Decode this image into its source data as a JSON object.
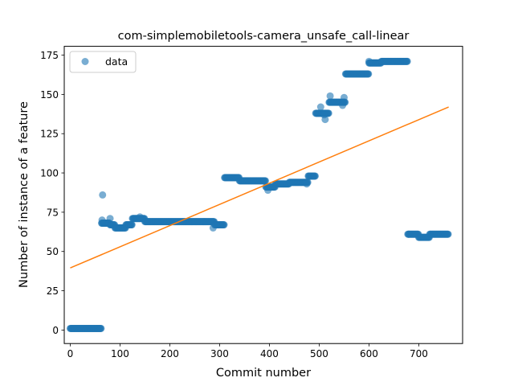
{
  "chart_data": {
    "type": "scatter",
    "title": "com-simplemobiletools-camera_unsafe_call-linear",
    "xlabel": "Commit number",
    "ylabel": "Number of instance of a feature",
    "xlim": [
      -12,
      788
    ],
    "ylim": [
      -8.6,
      180.6
    ],
    "xticks": [
      0,
      100,
      200,
      300,
      400,
      500,
      600,
      700
    ],
    "yticks": [
      0,
      25,
      50,
      75,
      100,
      125,
      150,
      175
    ],
    "grid": false,
    "legend": {
      "placement": "top-left",
      "entries": [
        "data"
      ]
    },
    "colors": {
      "data": "#1f77b4",
      "fit": "#ff7f0e"
    },
    "series": [
      {
        "name": "data",
        "kind": "scatter",
        "segments": [
          {
            "x_start": 0,
            "x_end": 63,
            "y": 1
          },
          {
            "x_start": 63,
            "x_end": 80,
            "y": 68
          },
          {
            "x_start": 80,
            "x_end": 90,
            "y": 67
          },
          {
            "x_start": 90,
            "x_end": 112,
            "y": 65
          },
          {
            "x_start": 112,
            "x_end": 125,
            "y": 67
          },
          {
            "x_start": 125,
            "x_end": 150,
            "y": 71
          },
          {
            "x_start": 150,
            "x_end": 290,
            "y": 69
          },
          {
            "x_start": 290,
            "x_end": 310,
            "y": 67
          },
          {
            "x_start": 310,
            "x_end": 340,
            "y": 97
          },
          {
            "x_start": 340,
            "x_end": 393,
            "y": 95
          },
          {
            "x_start": 393,
            "x_end": 412,
            "y": 91
          },
          {
            "x_start": 412,
            "x_end": 440,
            "y": 93
          },
          {
            "x_start": 440,
            "x_end": 478,
            "y": 94
          },
          {
            "x_start": 478,
            "x_end": 493,
            "y": 98
          },
          {
            "x_start": 493,
            "x_end": 520,
            "y": 138
          },
          {
            "x_start": 520,
            "x_end": 553,
            "y": 145
          },
          {
            "x_start": 553,
            "x_end": 600,
            "y": 163
          },
          {
            "x_start": 600,
            "x_end": 625,
            "y": 170
          },
          {
            "x_start": 625,
            "x_end": 678,
            "y": 171
          },
          {
            "x_start": 678,
            "x_end": 700,
            "y": 61
          },
          {
            "x_start": 700,
            "x_end": 722,
            "y": 59
          },
          {
            "x_start": 722,
            "x_end": 760,
            "y": 61
          }
        ],
        "points": [
          {
            "x": 65,
            "y": 86
          },
          {
            "x": 64,
            "y": 70
          },
          {
            "x": 80,
            "y": 71
          },
          {
            "x": 140,
            "y": 72
          },
          {
            "x": 287,
            "y": 65
          },
          {
            "x": 397,
            "y": 89
          },
          {
            "x": 475,
            "y": 93
          },
          {
            "x": 503,
            "y": 142
          },
          {
            "x": 512,
            "y": 134
          },
          {
            "x": 510,
            "y": 137
          },
          {
            "x": 522,
            "y": 149
          },
          {
            "x": 550,
            "y": 148
          },
          {
            "x": 547,
            "y": 143
          },
          {
            "x": 600,
            "y": 171
          }
        ]
      },
      {
        "kind": "line",
        "x": [
          0,
          760
        ],
        "y": [
          39.5,
          142
        ]
      }
    ]
  }
}
